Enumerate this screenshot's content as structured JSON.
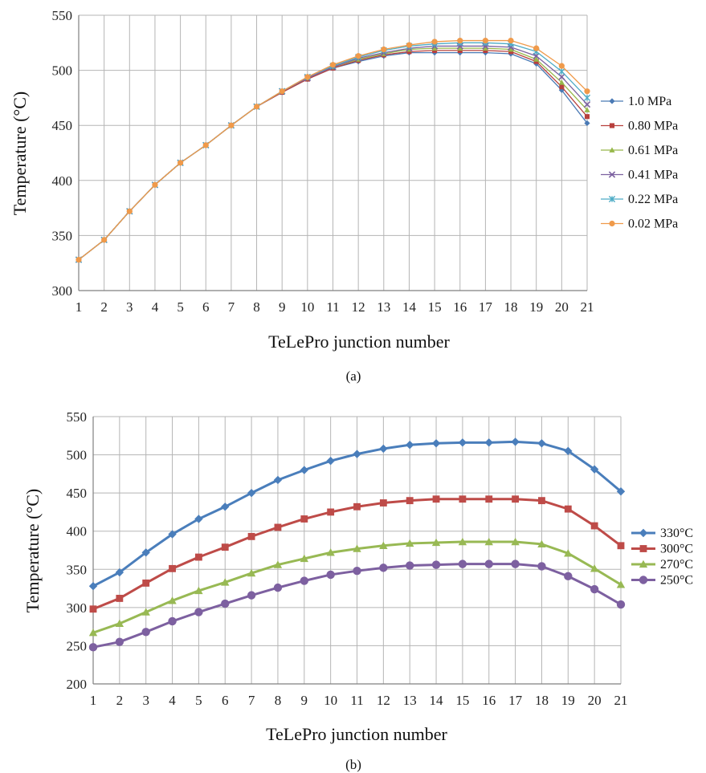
{
  "chart_data": [
    {
      "type": "line",
      "xlabel": "TeLePro junction number",
      "ylabel": "Temperature (°C)",
      "caption": "(a)",
      "ylim": [
        300,
        550
      ],
      "yticks": [
        300,
        350,
        400,
        450,
        500,
        550
      ],
      "x": [
        1,
        2,
        3,
        4,
        5,
        6,
        7,
        8,
        9,
        10,
        11,
        12,
        13,
        14,
        15,
        16,
        17,
        18,
        19,
        20,
        21
      ],
      "grid": true,
      "legend_position": "right",
      "series": [
        {
          "name": "1.0 MPa",
          "color": "#4a7ab5",
          "marker": "diamond",
          "values": [
            328,
            346,
            372,
            396,
            416,
            432,
            450,
            467,
            480,
            492,
            502,
            508,
            513,
            516,
            516,
            516,
            516,
            515,
            506,
            482,
            452
          ]
        },
        {
          "name": "0.80 MPa",
          "color": "#b8403d",
          "marker": "square",
          "values": [
            328,
            346,
            372,
            396,
            416,
            432,
            450,
            467,
            480,
            492,
            502,
            509,
            514,
            517,
            518,
            518,
            518,
            517,
            508,
            485,
            458
          ]
        },
        {
          "name": "0.61 MPa",
          "color": "#97b84a",
          "marker": "triangle",
          "values": [
            328,
            346,
            372,
            396,
            416,
            432,
            450,
            467,
            481,
            493,
            503,
            510,
            515,
            519,
            520,
            520,
            520,
            519,
            510,
            489,
            464
          ]
        },
        {
          "name": "0.41 MPa",
          "color": "#7c61a0",
          "marker": "x",
          "values": [
            328,
            346,
            372,
            396,
            416,
            432,
            450,
            467,
            481,
            493,
            503,
            511,
            516,
            520,
            522,
            522,
            522,
            521,
            513,
            494,
            469
          ]
        },
        {
          "name": "0.22 MPa",
          "color": "#4eacc6",
          "marker": "star",
          "values": [
            328,
            346,
            372,
            396,
            416,
            432,
            450,
            467,
            481,
            494,
            504,
            512,
            518,
            522,
            524,
            525,
            525,
            524,
            517,
            499,
            475
          ]
        },
        {
          "name": "0.02 MPa",
          "color": "#f09a4a",
          "marker": "circle",
          "values": [
            328,
            346,
            372,
            396,
            416,
            432,
            450,
            467,
            481,
            494,
            505,
            513,
            519,
            523,
            526,
            527,
            527,
            527,
            520,
            504,
            481
          ]
        }
      ]
    },
    {
      "type": "line",
      "xlabel": "TeLePro junction number",
      "ylabel": "Temperature (°C)",
      "caption": "(b)",
      "ylim": [
        200,
        550
      ],
      "yticks": [
        200,
        250,
        300,
        350,
        400,
        450,
        500,
        550
      ],
      "x": [
        1,
        2,
        3,
        4,
        5,
        6,
        7,
        8,
        9,
        10,
        11,
        12,
        13,
        14,
        15,
        16,
        17,
        18,
        19,
        20,
        21
      ],
      "grid": true,
      "legend_position": "right",
      "series": [
        {
          "name": "330°C",
          "color": "#4a7ebb",
          "marker": "diamond",
          "values": [
            328,
            346,
            372,
            396,
            416,
            432,
            450,
            467,
            480,
            492,
            501,
            508,
            513,
            515,
            516,
            516,
            517,
            515,
            505,
            481,
            452
          ]
        },
        {
          "name": "300°C",
          "color": "#be4b48",
          "marker": "square",
          "values": [
            298,
            312,
            332,
            351,
            366,
            379,
            393,
            405,
            416,
            425,
            432,
            437,
            440,
            442,
            442,
            442,
            442,
            440,
            429,
            407,
            381
          ]
        },
        {
          "name": "270°C",
          "color": "#98b954",
          "marker": "triangle",
          "values": [
            267,
            279,
            294,
            309,
            322,
            333,
            345,
            356,
            364,
            372,
            377,
            381,
            384,
            385,
            386,
            386,
            386,
            383,
            371,
            351,
            330
          ]
        },
        {
          "name": "250°C",
          "color": "#7d60a0",
          "marker": "circle",
          "values": [
            248,
            255,
            268,
            282,
            294,
            305,
            316,
            326,
            335,
            343,
            348,
            352,
            355,
            356,
            357,
            357,
            357,
            354,
            341,
            324,
            304
          ]
        }
      ]
    }
  ]
}
